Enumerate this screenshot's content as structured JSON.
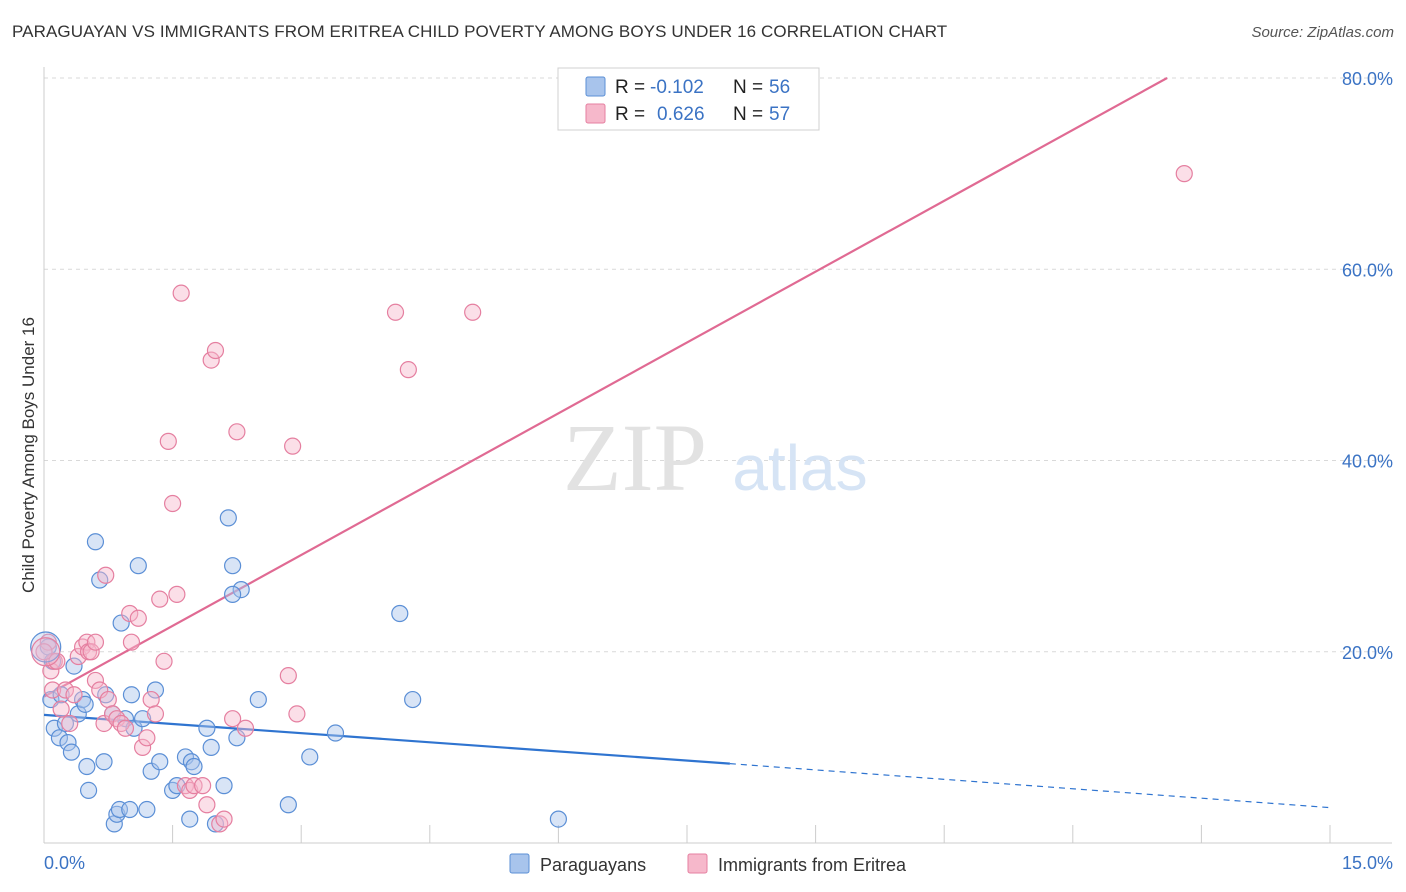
{
  "title": "PARAGUAYAN VS IMMIGRANTS FROM ERITREA CHILD POVERTY AMONG BOYS UNDER 16 CORRELATION CHART",
  "source": "Source: ZipAtlas.com",
  "watermark": {
    "zip": "ZIP",
    "atlas": "atlas"
  },
  "colors": {
    "blue_fill": "#a8c4ec",
    "blue_stroke": "#5b8fd6",
    "blue_line": "#2f74d0",
    "pink_fill": "#f6b8cb",
    "pink_stroke": "#e57fa0",
    "pink_line": "#e06a93",
    "tick_blue": "#3b73c4",
    "grid": "#d9d9d9"
  },
  "legend": {
    "rows": [
      {
        "r_label": "R =",
        "r_value": "-0.102",
        "n_label": "N =",
        "n_value": "56",
        "series": "blue"
      },
      {
        "r_label": "R =",
        "r_value": "0.626",
        "n_label": "N =",
        "n_value": "57",
        "series": "pink"
      }
    ]
  },
  "chart_data": {
    "type": "scatter",
    "title": "PARAGUAYAN VS IMMIGRANTS FROM ERITREA CHILD POVERTY AMONG BOYS UNDER 16 CORRELATION CHART",
    "xlabel": "",
    "ylabel": "Child Poverty Among Boys Under 16",
    "xlim": [
      0,
      15
    ],
    "ylim": [
      0,
      80
    ],
    "x_tick_labels": [
      "0.0%",
      "15.0%"
    ],
    "y_tick_labels": [
      "20.0%",
      "40.0%",
      "60.0%",
      "80.0%"
    ],
    "y_ticks": [
      20,
      40,
      60,
      80
    ],
    "grid": true,
    "legend_position": "bottom",
    "series": [
      {
        "name": "Paraguayans",
        "color": "blue",
        "r": -0.102,
        "n": 56,
        "trend": {
          "x0": 0.0,
          "y0": 13.4,
          "x1": 8.0,
          "y1": 8.3,
          "dash_to_x": 15.0,
          "dash_to_y": 3.7
        },
        "points": [
          [
            0.05,
            20.5
          ],
          [
            0.08,
            15.0
          ],
          [
            0.1,
            19.0
          ],
          [
            0.12,
            12.0
          ],
          [
            0.18,
            11.0
          ],
          [
            0.2,
            15.5
          ],
          [
            0.25,
            12.5
          ],
          [
            0.28,
            10.5
          ],
          [
            0.32,
            9.5
          ],
          [
            0.35,
            18.5
          ],
          [
            0.4,
            13.5
          ],
          [
            0.45,
            15.0
          ],
          [
            0.48,
            14.5
          ],
          [
            0.5,
            8.0
          ],
          [
            0.52,
            5.5
          ],
          [
            0.6,
            31.5
          ],
          [
            0.65,
            27.5
          ],
          [
            0.7,
            8.5
          ],
          [
            0.72,
            15.5
          ],
          [
            0.8,
            13.5
          ],
          [
            0.82,
            2.0
          ],
          [
            0.85,
            3.0
          ],
          [
            0.88,
            3.5
          ],
          [
            0.9,
            23.0
          ],
          [
            0.95,
            13.0
          ],
          [
            1.0,
            3.5
          ],
          [
            1.02,
            15.5
          ],
          [
            1.05,
            12.0
          ],
          [
            1.1,
            29.0
          ],
          [
            1.15,
            13.0
          ],
          [
            1.2,
            3.5
          ],
          [
            1.25,
            7.5
          ],
          [
            1.3,
            16.0
          ],
          [
            1.35,
            8.5
          ],
          [
            1.5,
            5.5
          ],
          [
            1.55,
            6.0
          ],
          [
            1.65,
            9.0
          ],
          [
            1.7,
            2.5
          ],
          [
            1.72,
            8.5
          ],
          [
            1.75,
            8.0
          ],
          [
            1.9,
            12.0
          ],
          [
            1.95,
            10.0
          ],
          [
            2.0,
            2.0
          ],
          [
            2.1,
            6.0
          ],
          [
            2.15,
            34.0
          ],
          [
            2.2,
            29.0
          ],
          [
            2.25,
            11.0
          ],
          [
            2.3,
            26.5
          ],
          [
            2.5,
            15.0
          ],
          [
            2.85,
            4.0
          ],
          [
            3.1,
            9.0
          ],
          [
            3.4,
            11.5
          ],
          [
            4.15,
            24.0
          ],
          [
            4.3,
            15.0
          ],
          [
            6.0,
            2.5
          ],
          [
            2.2,
            26.0
          ]
        ]
      },
      {
        "name": "Immigrants from Eritrea",
        "color": "pink",
        "r": 0.626,
        "n": 57,
        "trend": {
          "x0": 0.0,
          "y0": 15.3,
          "x1": 13.1,
          "y1": 80.0
        },
        "points": [
          [
            0.05,
            21.0
          ],
          [
            0.08,
            18.0
          ],
          [
            0.1,
            16.0
          ],
          [
            0.12,
            19.0
          ],
          [
            0.15,
            19.0
          ],
          [
            0.2,
            14.0
          ],
          [
            0.25,
            16.0
          ],
          [
            0.3,
            12.5
          ],
          [
            0.35,
            15.5
          ],
          [
            0.4,
            19.5
          ],
          [
            0.45,
            20.5
          ],
          [
            0.5,
            21.0
          ],
          [
            0.52,
            20.0
          ],
          [
            0.55,
            20.0
          ],
          [
            0.6,
            17.0
          ],
          [
            0.65,
            16.0
          ],
          [
            0.7,
            12.5
          ],
          [
            0.72,
            28.0
          ],
          [
            0.75,
            15.0
          ],
          [
            0.8,
            13.5
          ],
          [
            0.85,
            13.0
          ],
          [
            0.9,
            12.5
          ],
          [
            0.95,
            12.0
          ],
          [
            1.0,
            24.0
          ],
          [
            1.02,
            21.0
          ],
          [
            1.1,
            23.5
          ],
          [
            1.15,
            10.0
          ],
          [
            1.2,
            11.0
          ],
          [
            1.25,
            15.0
          ],
          [
            1.3,
            13.5
          ],
          [
            1.35,
            25.5
          ],
          [
            1.4,
            19.0
          ],
          [
            1.45,
            42.0
          ],
          [
            1.5,
            35.5
          ],
          [
            1.55,
            26.0
          ],
          [
            1.6,
            57.5
          ],
          [
            1.65,
            6.0
          ],
          [
            1.7,
            5.5
          ],
          [
            1.75,
            6.0
          ],
          [
            1.85,
            6.0
          ],
          [
            1.9,
            4.0
          ],
          [
            1.95,
            50.5
          ],
          [
            2.0,
            51.5
          ],
          [
            2.05,
            2.0
          ],
          [
            2.1,
            2.5
          ],
          [
            2.2,
            13.0
          ],
          [
            2.25,
            43.0
          ],
          [
            2.35,
            12.0
          ],
          [
            2.85,
            17.5
          ],
          [
            2.9,
            41.5
          ],
          [
            2.95,
            13.5
          ],
          [
            4.1,
            55.5
          ],
          [
            4.25,
            49.5
          ],
          [
            5.0,
            55.5
          ],
          [
            13.3,
            70.0
          ],
          [
            0.6,
            21.0
          ],
          [
            0.0,
            20.0
          ]
        ]
      }
    ]
  }
}
